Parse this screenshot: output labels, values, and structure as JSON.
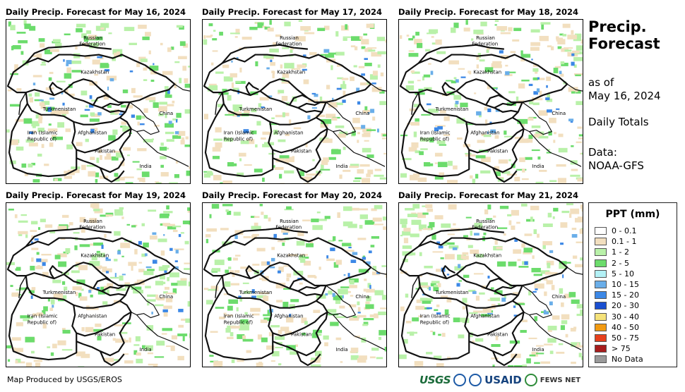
{
  "panels": [
    {
      "title": "Daily Precip. Forecast for May 16, 2024"
    },
    {
      "title": "Daily Precip. Forecast for May 17, 2024"
    },
    {
      "title": "Daily Precip. Forecast for May 18, 2024"
    },
    {
      "title": "Daily Precip. Forecast for May 19, 2024"
    },
    {
      "title": "Daily Precip. Forecast for May 20, 2024"
    },
    {
      "title": "Daily Precip. Forecast for May 21, 2024"
    }
  ],
  "map_labels": {
    "russia_1": "Russian",
    "russia_2": "Federation",
    "kazakhstan": "Kazakhstan",
    "turkmenistan": "Turkmenistan",
    "china": "China",
    "afghanistan": "Afghanistan",
    "iran_1": "Iran  (Islamic",
    "iran_2": "Republic of)",
    "pakistan": "Pakistan",
    "india": "India"
  },
  "side": {
    "title_1": "Precip.",
    "title_2": "Forecast",
    "asof_1": "as of",
    "asof_2": "May 16, 2024",
    "totals": "Daily Totals",
    "data_1": "Data:",
    "data_2": "NOAA-GFS"
  },
  "legend": {
    "title": "PPT (mm)",
    "items": [
      {
        "label": "0 - 0.1",
        "color": "#ffffff"
      },
      {
        "label": "0.1 - 1",
        "color": "#f2dfbf"
      },
      {
        "label": "1 - 2",
        "color": "#b9f1a9"
      },
      {
        "label": "2 - 5",
        "color": "#6cdc6c"
      },
      {
        "label": "5 - 10",
        "color": "#b3f1f6"
      },
      {
        "label": "10 - 15",
        "color": "#6aaee9"
      },
      {
        "label": "15 - 20",
        "color": "#3c88e6"
      },
      {
        "label": "20 - 30",
        "color": "#1a4fd0"
      },
      {
        "label": "30 - 40",
        "color": "#f5e27a"
      },
      {
        "label": "40 - 50",
        "color": "#f19a12"
      },
      {
        "label": "50 - 75",
        "color": "#e6401d"
      },
      {
        "label": "> 75",
        "color": "#a71c1c"
      },
      {
        "label": "No Data",
        "color": "#9a9a9a"
      }
    ]
  },
  "footer": {
    "credit": "Map Produced by USGS/EROS"
  },
  "logos": {
    "usgs": "USGS",
    "usaid": "USAID",
    "fews": "FEWS NET"
  }
}
